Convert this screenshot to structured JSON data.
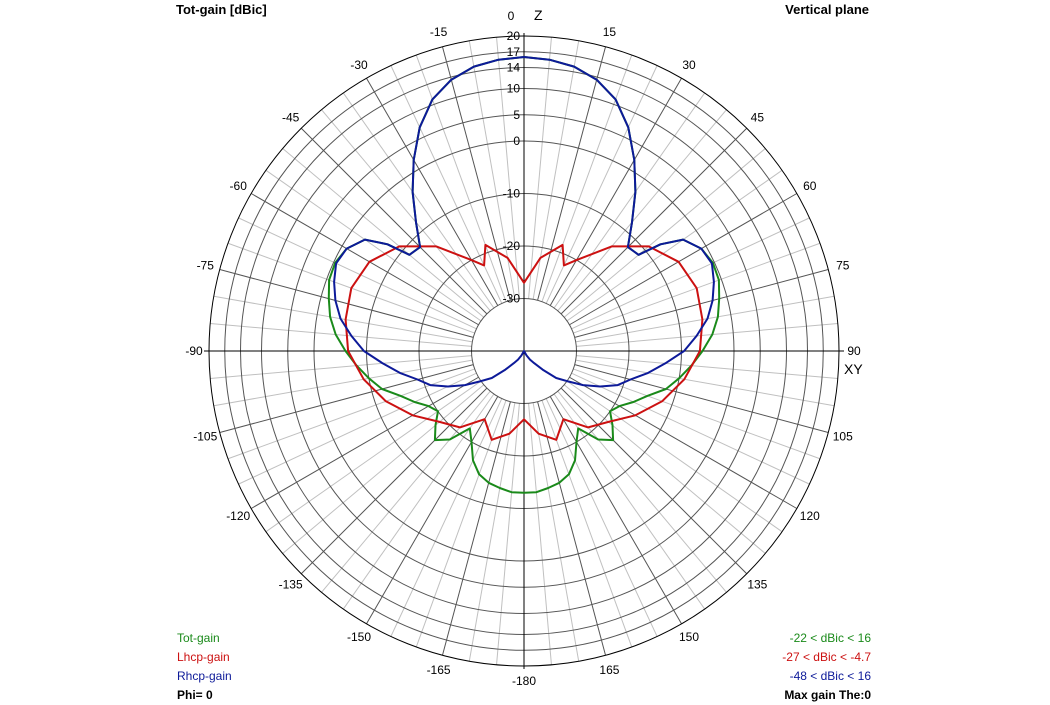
{
  "header": {
    "title": "Tot-gain [dBic]",
    "plane": "Vertical plane"
  },
  "footer": {
    "phi": "Phi= 0",
    "max_gain": "Max gain The:0"
  },
  "colors": {
    "tot": "#1a8a1a",
    "lhcp": "#cc1111",
    "rhcp": "#0d1a99",
    "grid_major": "#555555",
    "grid_minor": "#c0c0c0"
  },
  "chart_data": {
    "type": "polar-line",
    "title": "Tot-gain [dBic]",
    "plane": "Vertical plane",
    "axis_labels": {
      "top": "Z",
      "right": "XY"
    },
    "angle_ticks": [
      "0",
      "15",
      "30",
      "45",
      "60",
      "75",
      "90",
      "105",
      "120",
      "135",
      "150",
      "165",
      "-180",
      "-165",
      "-150",
      "-135",
      "-120",
      "-105",
      "-90",
      "-75",
      "-60",
      "-45",
      "-30",
      "-15"
    ],
    "angle_values": [
      0,
      15,
      30,
      45,
      60,
      75,
      90,
      105,
      120,
      135,
      150,
      165,
      180,
      195,
      210,
      225,
      240,
      255,
      270,
      285,
      300,
      315,
      330,
      345
    ],
    "ring_labels": [
      "20",
      "17",
      "14",
      "10",
      "5",
      "0",
      "-10",
      "-20",
      "-30"
    ],
    "ring_values": [
      20,
      17,
      14,
      10,
      5,
      0,
      -10,
      -20,
      -30
    ],
    "radial_min": -40,
    "radial_max": 20,
    "series": [
      {
        "name": "Tot-gain",
        "range": "-22 < dBic < 16",
        "theta": [
          0,
          5,
          10,
          15,
          20,
          25,
          30,
          35,
          40,
          45,
          50,
          52,
          55,
          60,
          65,
          70,
          75,
          80,
          85,
          90,
          95,
          100,
          105,
          110,
          115,
          120,
          125,
          130,
          135,
          140,
          145,
          150,
          155,
          160,
          165,
          170,
          175,
          180
        ],
        "gain": [
          16,
          15.7,
          15,
          13.5,
          11,
          7,
          2,
          -3,
          -8,
          -12,
          -11.5,
          -7,
          -3,
          -1,
          -0.3,
          -0.5,
          -1.5,
          -2.5,
          -4,
          -6,
          -8,
          -10,
          -12,
          -15,
          -17,
          -19,
          -20,
          -18,
          -16,
          -18,
          -22,
          -20,
          -17,
          -15,
          -14,
          -13.5,
          -13,
          -13
        ]
      },
      {
        "name": "Lhcp-gain",
        "range": "-27 < dBic < -4.7",
        "theta": [
          0,
          10,
          20,
          25,
          30,
          40,
          50,
          60,
          70,
          80,
          90,
          100,
          110,
          120,
          130,
          140,
          150,
          160,
          170,
          180
        ],
        "gain": [
          -27,
          -22,
          -18.5,
          -22,
          -20,
          -14,
          -9,
          -6,
          -5,
          -5.5,
          -6.5,
          -9,
          -12,
          -15.5,
          -19,
          -21,
          -25,
          -22,
          -24,
          -27
        ]
      },
      {
        "name": "Rhcp-gain",
        "range": "-48 < dBic < 16",
        "theta": [
          0,
          5,
          10,
          15,
          20,
          25,
          30,
          35,
          40,
          45,
          50,
          52,
          55,
          60,
          65,
          70,
          75,
          80,
          85,
          90,
          95,
          100,
          105,
          110,
          115,
          120,
          125,
          130,
          135,
          140,
          145,
          150,
          155,
          160,
          165,
          170,
          175,
          180
        ],
        "gain": [
          16,
          15.7,
          15,
          13.5,
          11,
          7,
          2,
          -3,
          -8,
          -12,
          -11.5,
          -7,
          -3,
          -1,
          -0.5,
          -1.5,
          -2.8,
          -4.5,
          -7,
          -9.5,
          -13,
          -16,
          -19,
          -21,
          -24,
          -27,
          -30,
          -32,
          -35,
          -37,
          -38,
          -39,
          -40,
          -41,
          -43,
          -45,
          -47,
          -48
        ]
      }
    ]
  }
}
